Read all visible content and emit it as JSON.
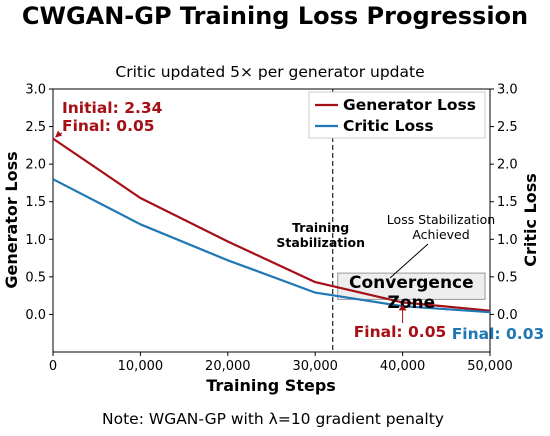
{
  "chart_data": {
    "type": "line",
    "title": "CWGAN-GP Training Loss Progression",
    "subtitle": "Critic updated 5× per generator update",
    "xlabel": "Training Steps",
    "ylabel": "Generator Loss",
    "ylabel_right": "Critic Loss",
    "xlim": [
      0,
      50000
    ],
    "ylim": [
      -0.5,
      3.0
    ],
    "ylim_right": [
      -0.5,
      3.0
    ],
    "x_ticks": [
      "0",
      "10,000",
      "20,000",
      "30,000",
      "40,000",
      "50,000"
    ],
    "y_ticks": [
      "0.0",
      "0.5",
      "1.0",
      "1.5",
      "2.0",
      "2.5",
      "3.0"
    ],
    "y_ticks_right": [
      "0.0",
      "0.5",
      "1.0",
      "1.5",
      "2.0",
      "2.5",
      "3.0"
    ],
    "grid": false,
    "legend_position": "top-right",
    "x": [
      0,
      10000,
      20000,
      30000,
      40000,
      50000
    ],
    "series": [
      {
        "name": "Generator Loss",
        "color": "#a50f15",
        "values": [
          2.34,
          1.55,
          0.97,
          0.43,
          0.16,
          0.05
        ]
      },
      {
        "name": "Critic Loss",
        "color": "#1f77b4",
        "values": [
          1.8,
          1.2,
          0.72,
          0.29,
          0.11,
          0.03
        ]
      }
    ],
    "vline": {
      "x": 32000,
      "label_line1": "Training",
      "label_line2": "Stabilization"
    },
    "annotations": {
      "initial": "Initial: 2.34",
      "final_top": "Final: 0.05",
      "final_generator": "Final: 0.05",
      "final_critic": "Final: 0.03",
      "stabilization_line1": "Loss Stabilization",
      "stabilization_line2": "Achieved",
      "convergence_line1": "Convergence",
      "convergence_line2": "Zone"
    },
    "convergence_zone": {
      "x0": 32000,
      "x1": 50000,
      "y0": 0.2,
      "y1": 0.55
    }
  },
  "note": "Note: WGAN-GP with λ=10 gradient penalty"
}
